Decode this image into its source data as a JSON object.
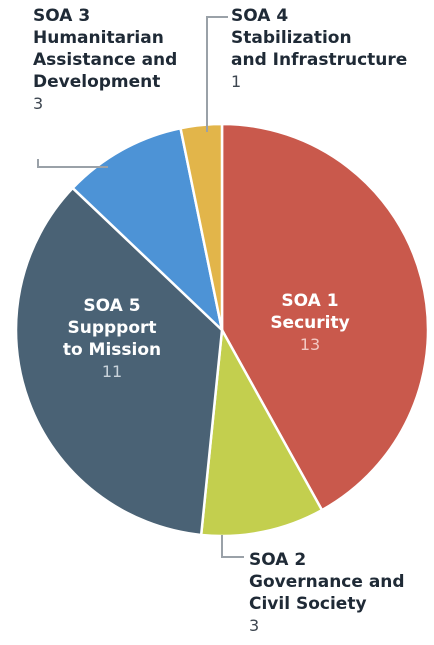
{
  "chart_data": {
    "type": "pie",
    "start": "12 o'clock",
    "direction": "clockwise",
    "slices": [
      {
        "id": "soa1",
        "label_lines": [
          "SOA 1",
          "Security"
        ],
        "value": 13,
        "value_text": "13",
        "color": "#c9594c",
        "label_position": "inside",
        "label_color": "#ffffff",
        "value_color": "#f3c9c3"
      },
      {
        "id": "soa2",
        "label_lines": [
          "SOA 2",
          "Governance and",
          "Civil Society"
        ],
        "value": 3,
        "value_text": "3",
        "color": "#c3cf4e",
        "label_position": "outside",
        "label_color": "#1f2a36",
        "value_color": "#3d4650"
      },
      {
        "id": "soa5",
        "label_lines": [
          "SOA 5",
          "Suppport",
          "to Mission"
        ],
        "value": 11,
        "value_text": "11",
        "color": "#4a6275",
        "label_position": "inside",
        "label_color": "#ffffff",
        "value_color": "#c9d3db"
      },
      {
        "id": "soa3",
        "label_lines": [
          "SOA 3",
          "Humanitarian",
          "Assistance and",
          "Development"
        ],
        "value": 3,
        "value_text": "3",
        "color": "#4d93d6",
        "label_position": "outside",
        "label_color": "#1f2a36",
        "value_color": "#3d4650"
      },
      {
        "id": "soa4",
        "label_lines": [
          "SOA 4",
          "Stabilization",
          "and Infrastructure"
        ],
        "value": 1,
        "value_text": "1",
        "color": "#e2b54a",
        "label_position": "outside",
        "label_color": "#1f2a36",
        "value_color": "#3d4650"
      }
    ],
    "leader_color": "#9aa1a8"
  }
}
